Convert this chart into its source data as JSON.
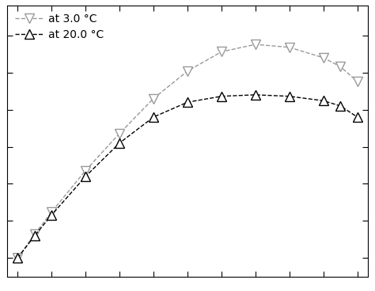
{
  "title": "",
  "series_20C": {
    "label": "at 20.0 °C",
    "color": "#000000",
    "marker": "^",
    "markersize": 9,
    "linestyle": "--",
    "x": [
      0,
      5,
      10,
      20,
      30,
      40,
      50,
      60,
      70,
      80,
      90,
      95,
      100
    ],
    "y": [
      0.0,
      0.03,
      0.058,
      0.11,
      0.155,
      0.19,
      0.21,
      0.218,
      0.22,
      0.218,
      0.212,
      0.205,
      0.19
    ]
  },
  "series_3C": {
    "label": "at 3.0 °C",
    "color": "#999999",
    "marker": "v",
    "markersize": 9,
    "linestyle": "--",
    "x": [
      0,
      5,
      10,
      20,
      30,
      40,
      50,
      60,
      70,
      80,
      90,
      95,
      100
    ],
    "y": [
      0.0,
      0.032,
      0.062,
      0.118,
      0.168,
      0.215,
      0.252,
      0.278,
      0.288,
      0.284,
      0.27,
      0.258,
      0.238
    ]
  },
  "xlim": [
    -3,
    103
  ],
  "ylim": [
    -0.025,
    0.34
  ],
  "xticks": [
    0,
    10,
    20,
    30,
    40,
    50,
    60,
    70,
    80,
    90,
    100
  ],
  "ytick_values": [
    0.0,
    0.05,
    0.1,
    0.15,
    0.2,
    0.25,
    0.3
  ],
  "background_color": "#ffffff",
  "legend_loc": "upper left",
  "linewidth": 1.0,
  "markeredgewidth": 1.0
}
